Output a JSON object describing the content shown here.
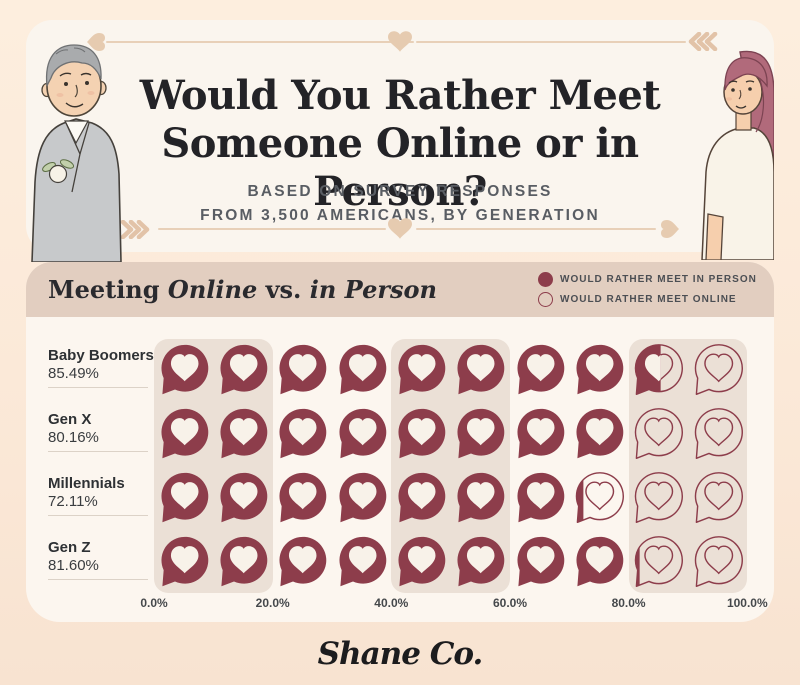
{
  "header": {
    "title_line1": "Would You Rather Meet",
    "title_line2": "Someone Online or in Person?",
    "subtitle_line1": "BASED ON SURVEY RESPONSES",
    "subtitle_line2": "FROM 3,500 AMERICANS, BY GENERATION"
  },
  "chart": {
    "section_title": {
      "part1": "Meeting ",
      "part2": "Online",
      "part3": " vs. ",
      "part4": "in Person"
    },
    "legend": [
      {
        "label": "WOULD RATHER MEET IN PERSON",
        "style": "filled"
      },
      {
        "label": "WOULD RATHER MEET ONLINE",
        "style": "outline"
      }
    ]
  },
  "chart_data": {
    "type": "pictograph-bar",
    "title": "Meeting Online vs. in Person",
    "categories": [
      "Baby Boomers",
      "Gen X",
      "Millennials",
      "Gen Z"
    ],
    "values": [
      85.49,
      80.16,
      72.11,
      81.6
    ],
    "value_labels": [
      "85.49%",
      "80.16%",
      "72.11%",
      "81.60%"
    ],
    "icons_per_row": 10,
    "icon_unit_percent": 10,
    "x_ticks": [
      "0.0%",
      "20.0%",
      "40.0%",
      "60.0%",
      "80.0%",
      "100.0%"
    ],
    "xlim": [
      0,
      100
    ],
    "series_filled": "Would rather meet in person",
    "series_outline": "Would rather meet online",
    "legend_position": "top-right"
  },
  "colors": {
    "maroon": "#8d3d4b",
    "heart_cream": "#f8f2e9",
    "stripe_beige": "#ebe0d6",
    "header_tan": "#e2cec0",
    "card_cream": "#fcf6ef",
    "deco_beige": "#e8d0b8"
  },
  "footer": {
    "logo_text": "Shane Co."
  }
}
